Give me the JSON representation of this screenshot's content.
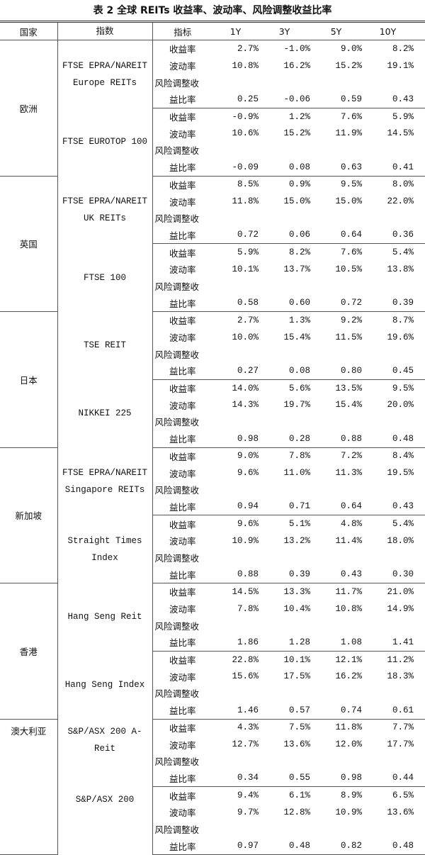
{
  "title": "表 2 全球 REITs 收益率、波动率、风险调整收益比率",
  "headers": {
    "country": "国家",
    "index": "指数",
    "metric": "指标",
    "periods": [
      "1Y",
      "3Y",
      "5Y",
      "10Y"
    ]
  },
  "metrics": {
    "return": "收益率",
    "volatility": "波动率",
    "risk_adjusted_line1": "风险调整收",
    "risk_adjusted_line2": "益比率"
  },
  "countries": [
    {
      "name": "欧洲",
      "indices": [
        {
          "name": "FTSE EPRA/NAREIT Europe REITs",
          "return": [
            "2.7%",
            "-1.0%",
            "9.0%",
            "8.2%"
          ],
          "volatility": [
            "10.8%",
            "16.2%",
            "15.2%",
            "19.1%"
          ],
          "risk_adjusted": [
            "0.25",
            "-0.06",
            "0.59",
            "0.43"
          ]
        },
        {
          "name": "FTSE EUROTOP 100",
          "return": [
            "-0.9%",
            "1.2%",
            "7.6%",
            "5.9%"
          ],
          "volatility": [
            "10.6%",
            "15.2%",
            "11.9%",
            "14.5%"
          ],
          "risk_adjusted": [
            "-0.09",
            "0.08",
            "0.63",
            "0.41"
          ]
        }
      ]
    },
    {
      "name": "英国",
      "indices": [
        {
          "name": "FTSE EPRA/NAREIT UK REITs",
          "return": [
            "8.5%",
            "0.9%",
            "9.5%",
            "8.0%"
          ],
          "volatility": [
            "11.8%",
            "15.0%",
            "15.0%",
            "22.0%"
          ],
          "risk_adjusted": [
            "0.72",
            "0.06",
            "0.64",
            "0.36"
          ]
        },
        {
          "name": "FTSE 100",
          "return": [
            "5.9%",
            "8.2%",
            "7.6%",
            "5.4%"
          ],
          "volatility": [
            "10.1%",
            "13.7%",
            "10.5%",
            "13.8%"
          ],
          "risk_adjusted": [
            "0.58",
            "0.60",
            "0.72",
            "0.39"
          ]
        }
      ]
    },
    {
      "name": "日本",
      "indices": [
        {
          "name": "TSE REIT",
          "return": [
            "2.7%",
            "1.3%",
            "9.2%",
            "8.7%"
          ],
          "volatility": [
            "10.0%",
            "15.4%",
            "11.5%",
            "19.6%"
          ],
          "risk_adjusted": [
            "0.27",
            "0.08",
            "0.80",
            "0.45"
          ]
        },
        {
          "name": "NIKKEI 225",
          "return": [
            "14.0%",
            "5.6%",
            "13.5%",
            "9.5%"
          ],
          "volatility": [
            "14.3%",
            "19.7%",
            "15.4%",
            "20.0%"
          ],
          "risk_adjusted": [
            "0.98",
            "0.28",
            "0.88",
            "0.48"
          ]
        }
      ]
    },
    {
      "name": "新加坡",
      "indices": [
        {
          "name": "FTSE EPRA/NAREIT Singapore REITs",
          "return": [
            "9.0%",
            "7.8%",
            "7.2%",
            "8.4%"
          ],
          "volatility": [
            "9.6%",
            "11.0%",
            "11.3%",
            "19.5%"
          ],
          "risk_adjusted": [
            "0.94",
            "0.71",
            "0.64",
            "0.43"
          ]
        },
        {
          "name": "Straight Times Index",
          "return": [
            "9.6%",
            "5.1%",
            "4.8%",
            "5.4%"
          ],
          "volatility": [
            "10.9%",
            "13.2%",
            "11.4%",
            "18.0%"
          ],
          "risk_adjusted": [
            "0.88",
            "0.39",
            "0.43",
            "0.30"
          ]
        }
      ]
    },
    {
      "name": "香港",
      "indices": [
        {
          "name": "Hang Seng Reit",
          "return": [
            "14.5%",
            "13.3%",
            "11.7%",
            "21.0%"
          ],
          "volatility": [
            "7.8%",
            "10.4%",
            "10.8%",
            "14.9%"
          ],
          "risk_adjusted": [
            "1.86",
            "1.28",
            "1.08",
            "1.41"
          ]
        },
        {
          "name": "Hang Seng Index",
          "return": [
            "22.8%",
            "10.1%",
            "12.1%",
            "11.2%"
          ],
          "volatility": [
            "15.6%",
            "17.5%",
            "16.2%",
            "18.3%"
          ],
          "risk_adjusted": [
            "1.46",
            "0.57",
            "0.74",
            "0.61"
          ]
        }
      ]
    },
    {
      "name": "澳大利亚",
      "indices": [
        {
          "name": "S&P/ASX 200 A-Reit",
          "return": [
            "4.3%",
            "7.5%",
            "11.8%",
            "7.7%"
          ],
          "volatility": [
            "12.7%",
            "13.6%",
            "12.0%",
            "17.7%"
          ],
          "risk_adjusted": [
            "0.34",
            "0.55",
            "0.98",
            "0.44"
          ]
        },
        {
          "name": "S&P/ASX 200",
          "return": [
            "9.4%",
            "6.1%",
            "8.9%",
            "6.5%"
          ],
          "volatility": [
            "9.7%",
            "12.8%",
            "10.9%",
            "13.6%"
          ],
          "risk_adjusted": [
            "0.97",
            "0.48",
            "0.82",
            "0.48"
          ]
        }
      ]
    }
  ]
}
